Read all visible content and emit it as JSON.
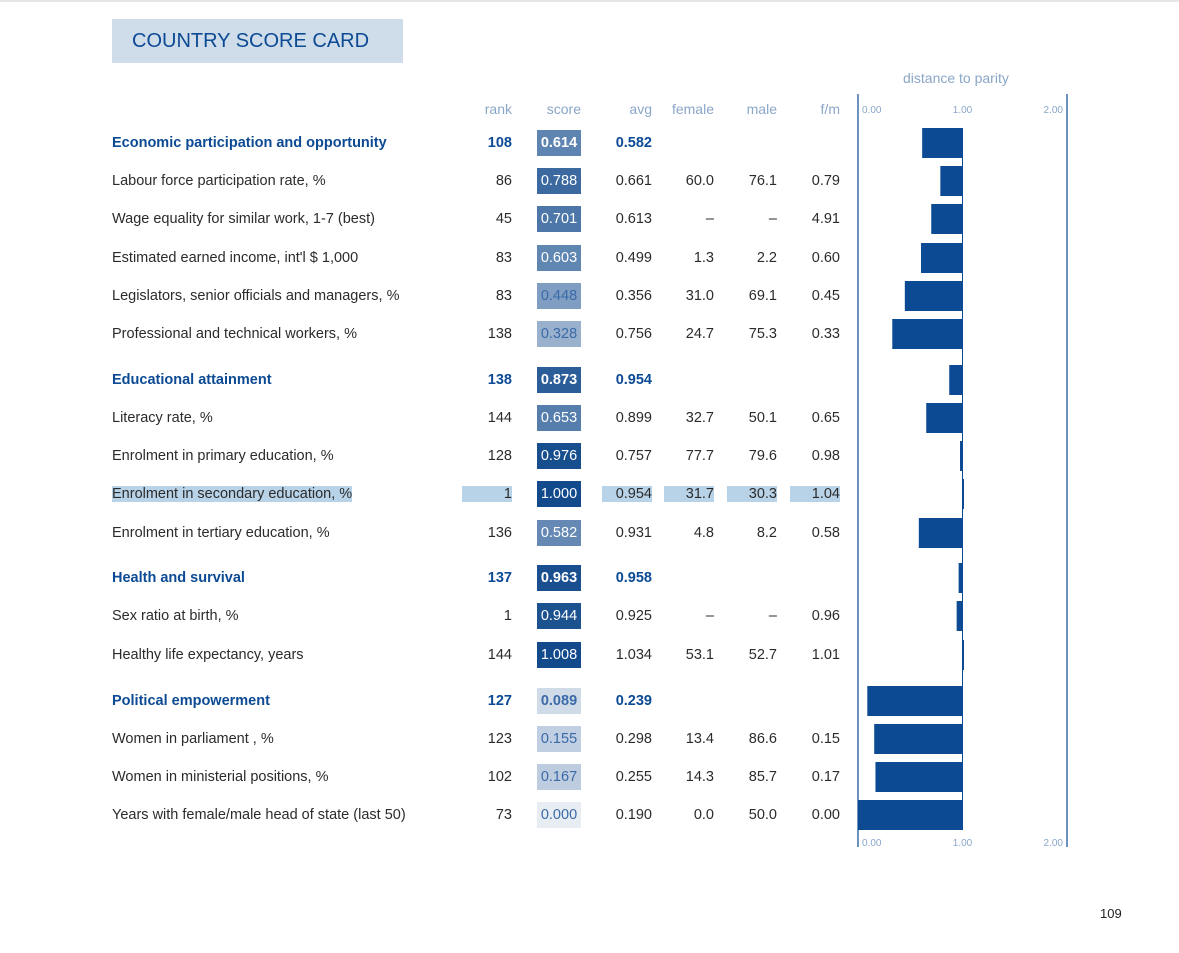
{
  "title": "COUNTRY SCORE CARD",
  "distance_label": "distance to parity",
  "columns": {
    "rank": "rank",
    "score": "score",
    "avg": "avg",
    "female": "female",
    "male": "male",
    "fm": "f/m"
  },
  "axis_ticks": [
    "0.00",
    "1.00",
    "2.00"
  ],
  "page_number": "109",
  "colors": {
    "accent": "#0c4a94",
    "bar": "#0c4a94",
    "title_bg": "#cfdcea",
    "muted": "#8aa6c8"
  },
  "rows": [
    {
      "label": "Economic participation and opportunity",
      "type": "head",
      "rank": "108",
      "score": "0.614",
      "avg": "0.582",
      "female": "",
      "male": "",
      "fm": ""
    },
    {
      "label": "Labour force participation rate, %",
      "type": "item",
      "rank": "86",
      "score": "0.788",
      "avg": "0.661",
      "female": "60.0",
      "male": "76.1",
      "fm": "0.79"
    },
    {
      "label": "Wage equality for similar work, 1-7 (best)",
      "type": "item",
      "rank": "45",
      "score": "0.701",
      "avg": "0.613",
      "female": "–",
      "male": "–",
      "fm": "4.91"
    },
    {
      "label": "Estimated earned income, int'l $ 1,000",
      "type": "item",
      "rank": "83",
      "score": "0.603",
      "avg": "0.499",
      "female": "1.3",
      "male": "2.2",
      "fm": "0.60"
    },
    {
      "label": "Legislators, senior officials and managers, %",
      "type": "item",
      "rank": "83",
      "score": "0.448",
      "avg": "0.356",
      "female": "31.0",
      "male": "69.1",
      "fm": "0.45"
    },
    {
      "label": "Professional and technical workers, %",
      "type": "item",
      "rank": "138",
      "score": "0.328",
      "avg": "0.756",
      "female": "24.7",
      "male": "75.3",
      "fm": "0.33"
    },
    {
      "label": "Educational attainment",
      "type": "head",
      "rank": "138",
      "score": "0.873",
      "avg": "0.954",
      "female": "",
      "male": "",
      "fm": ""
    },
    {
      "label": "Literacy rate, %",
      "type": "item",
      "rank": "144",
      "score": "0.653",
      "avg": "0.899",
      "female": "32.7",
      "male": "50.1",
      "fm": "0.65"
    },
    {
      "label": "Enrolment in primary education, %",
      "type": "item",
      "rank": "128",
      "score": "0.976",
      "avg": "0.757",
      "female": "77.7",
      "male": "79.6",
      "fm": "0.98"
    },
    {
      "label": "Enrolment in secondary education, %",
      "type": "item",
      "highlight": true,
      "rank": "1",
      "score": "1.000",
      "avg": "0.954",
      "female": "31.7",
      "male": "30.3",
      "fm": "1.04"
    },
    {
      "label": "Enrolment in tertiary education, %",
      "type": "item",
      "rank": "136",
      "score": "0.582",
      "avg": "0.931",
      "female": "4.8",
      "male": "8.2",
      "fm": "0.58"
    },
    {
      "label": "Health and survival",
      "type": "head",
      "rank": "137",
      "score": "0.963",
      "avg": "0.958",
      "female": "",
      "male": "",
      "fm": ""
    },
    {
      "label": "Sex ratio at birth, %",
      "type": "item",
      "rank": "1",
      "score": "0.944",
      "avg": "0.925",
      "female": "–",
      "male": "–",
      "fm": "0.96"
    },
    {
      "label": "Healthy life expectancy, years",
      "type": "item",
      "rank": "144",
      "score": "1.008",
      "avg": "1.034",
      "female": "53.1",
      "male": "52.7",
      "fm": "1.01"
    },
    {
      "label": "Political empowerment",
      "type": "head",
      "rank": "127",
      "score": "0.089",
      "avg": "0.239",
      "female": "",
      "male": "",
      "fm": ""
    },
    {
      "label": "Women in parliament , %",
      "type": "item",
      "rank": "123",
      "score": "0.155",
      "avg": "0.298",
      "female": "13.4",
      "male": "86.6",
      "fm": "0.15"
    },
    {
      "label": "Women in ministerial positions, %",
      "type": "item",
      "rank": "102",
      "score": "0.167",
      "avg": "0.255",
      "female": "14.3",
      "male": "85.7",
      "fm": "0.17"
    },
    {
      "label": "Years with female/male head of state (last 50)",
      "type": "item",
      "rank": "73",
      "score": "0.000",
      "avg": "0.190",
      "female": "0.0",
      "male": "50.0",
      "fm": "0.00"
    }
  ],
  "chart_data": {
    "type": "bar",
    "orientation": "horizontal",
    "xlim": [
      0,
      2
    ],
    "reference": 1.0,
    "categories": [
      "Economic participation and opportunity",
      "Labour force participation rate, %",
      "Wage equality for similar work, 1-7 (best)",
      "Estimated earned income, int'l $ 1,000",
      "Legislators, senior officials and managers, %",
      "Professional and technical workers, %",
      "Educational attainment",
      "Literacy rate, %",
      "Enrolment in primary education, %",
      "Enrolment in secondary education, %",
      "Enrolment in tertiary education, %",
      "Health and survival",
      "Sex ratio at birth, %",
      "Healthy life expectancy, years",
      "Political empowerment",
      "Women in parliament , %",
      "Women in ministerial positions, %",
      "Years with female/male head of state (last 50)"
    ],
    "values": [
      0.614,
      0.788,
      0.701,
      0.603,
      0.448,
      0.328,
      0.873,
      0.653,
      0.976,
      1.0,
      0.582,
      0.963,
      0.944,
      1.008,
      0.089,
      0.155,
      0.167,
      0.0
    ]
  }
}
